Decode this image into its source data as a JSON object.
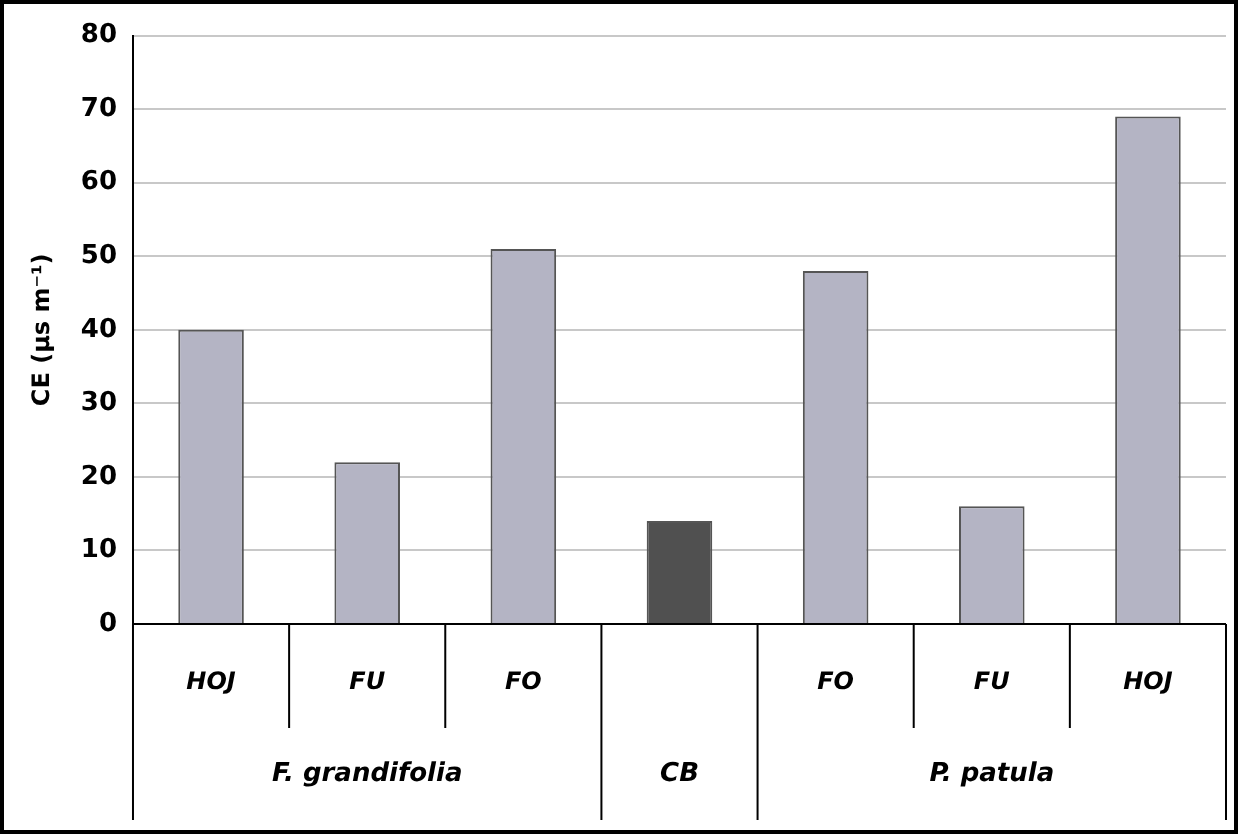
{
  "chart_data": {
    "type": "bar",
    "ylabel": "CE (µs m⁻¹)",
    "categories": [
      "HOJ",
      "FU",
      "FO",
      null,
      "FO",
      "FU",
      "HOJ"
    ],
    "values": [
      40,
      22,
      51,
      14,
      48,
      16,
      69
    ],
    "colors": [
      "#b4b4c4",
      "#b4b4c4",
      "#b4b4c4",
      "#505050",
      "#b4b4c4",
      "#b4b4c4",
      "#b4b4c4"
    ],
    "ylim": [
      0,
      80
    ],
    "yticks": [
      0,
      10,
      20,
      30,
      40,
      50,
      60,
      70,
      80
    ],
    "grid": "y",
    "legend": false,
    "annotations": [
      "F. grandifolia",
      "CB",
      "P. patula"
    ]
  }
}
